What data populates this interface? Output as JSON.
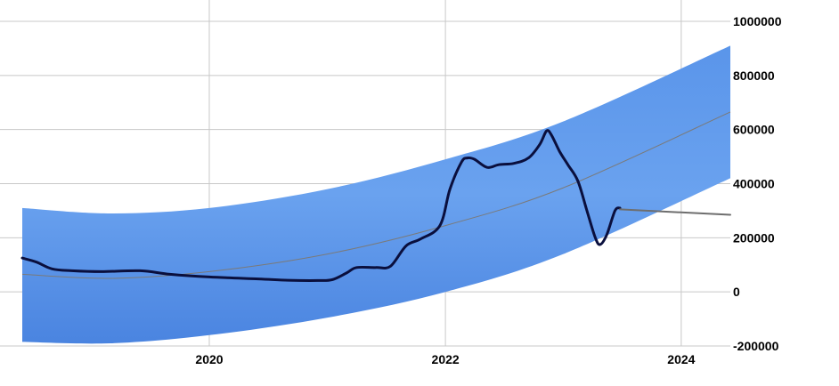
{
  "chart_data": {
    "type": "line",
    "title": "",
    "xlabel": "",
    "ylabel": "",
    "xlim": [
      "2018-06-01",
      "2024-06-01"
    ],
    "ylim": [
      -200000,
      1000000
    ],
    "x_ticks": [
      "2020",
      "2022",
      "2024"
    ],
    "y_ticks": [
      "1000000",
      "800000",
      "600000",
      "400000",
      "200000",
      "0",
      "-200000"
    ],
    "y_axis_side": "right",
    "grid": true,
    "colors": {
      "band": "#4d8ae6",
      "trend": "#7a7a7a",
      "price": "#0a0f3d",
      "projection": "#6e6e6e",
      "grid": "#c8c8c8"
    },
    "band": {
      "x": [
        "2018-06-01",
        "2019-03-01",
        "2020-01-01",
        "2021-01-01",
        "2022-01-01",
        "2023-01-01",
        "2024-06-01"
      ],
      "upper": [
        310000,
        290000,
        310000,
        380000,
        490000,
        630000,
        910000
      ],
      "lower": [
        -185000,
        -190000,
        -160000,
        -95000,
        0,
        140000,
        420000
      ]
    },
    "trend": {
      "x": [
        "2018-06-01",
        "2019-03-01",
        "2020-01-01",
        "2021-01-01",
        "2022-01-01",
        "2023-01-01",
        "2024-06-01"
      ],
      "y": [
        65000,
        50000,
        75000,
        140000,
        245000,
        385000,
        665000
      ]
    },
    "series": [
      {
        "x": [
          "2018-06-01",
          "2018-07-15",
          "2018-09-01",
          "2018-11-01",
          "2019-02-01",
          "2019-06-01",
          "2019-09-01",
          "2020-01-01",
          "2020-06-01",
          "2020-09-01",
          "2020-12-01",
          "2021-01-15",
          "2021-03-01",
          "2021-04-01",
          "2021-06-01",
          "2021-07-15",
          "2021-09-01",
          "2021-10-15",
          "2021-12-15",
          "2022-01-15",
          "2022-02-20",
          "2022-03-10",
          "2022-04-01",
          "2022-05-10",
          "2022-06-15",
          "2022-08-01",
          "2022-09-15",
          "2022-10-20",
          "2022-11-10",
          "2022-11-25",
          "2022-12-20",
          "2023-01-15",
          "2023-02-15",
          "2023-03-15",
          "2023-04-10",
          "2023-04-25",
          "2023-05-15",
          "2023-06-10",
          "2023-06-25"
        ],
        "y": [
          125000,
          110000,
          85000,
          78000,
          75000,
          78000,
          65000,
          55000,
          48000,
          43000,
          42000,
          45000,
          70000,
          90000,
          90000,
          95000,
          170000,
          195000,
          245000,
          380000,
          480000,
          495000,
          490000,
          460000,
          470000,
          475000,
          495000,
          545000,
          595000,
          580000,
          520000,
          470000,
          410000,
          300000,
          200000,
          175000,
          210000,
          300000,
          310000
        ]
      },
      {
        "x": [
          "2023-06-25",
          "2024-06-01"
        ],
        "y": [
          305000,
          285000
        ]
      }
    ]
  }
}
